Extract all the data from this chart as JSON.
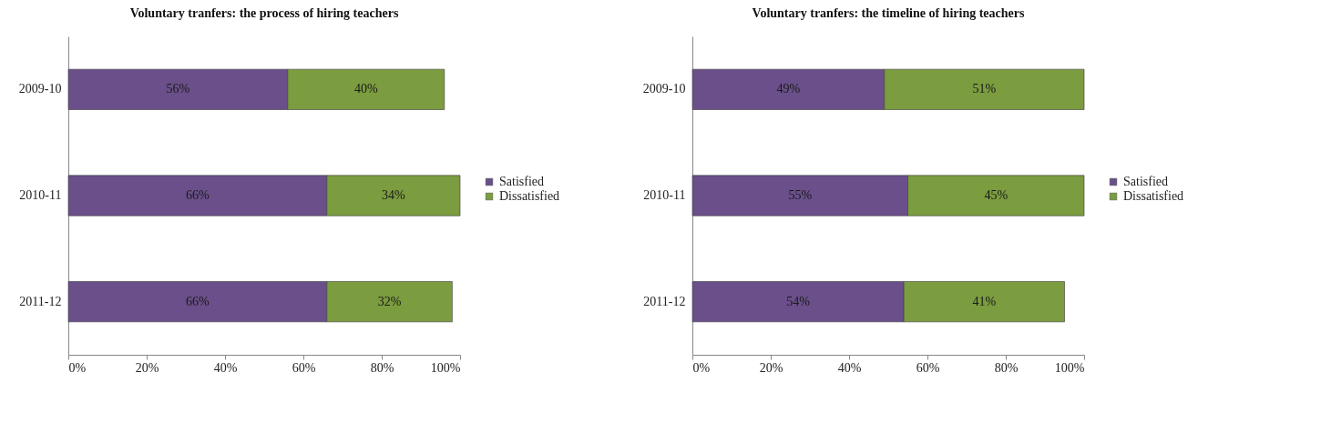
{
  "chart_data": [
    {
      "type": "bar",
      "orientation": "horizontal",
      "stacked": true,
      "title": "Voluntary tranfers: the process of hiring  teachers",
      "categories": [
        "2009-10",
        "2010-11",
        "2011-12"
      ],
      "series": [
        {
          "name": "Satisfied",
          "color": "#6a4f8a",
          "values": [
            56,
            66,
            66
          ],
          "value_labels": [
            "56%",
            "66%",
            "66%"
          ]
        },
        {
          "name": "Dissatisfied",
          "color": "#7b9c3f",
          "values": [
            40,
            34,
            32
          ],
          "value_labels": [
            "40%",
            "34%",
            "32%"
          ]
        }
      ],
      "xlim": [
        0,
        100
      ],
      "xticks": [
        {
          "value": 0,
          "label": "0%"
        },
        {
          "value": 20,
          "label": "20%"
        },
        {
          "value": 40,
          "label": "40%"
        },
        {
          "value": 60,
          "label": "60%"
        },
        {
          "value": 80,
          "label": "80%"
        },
        {
          "value": 100,
          "label": "100%"
        }
      ],
      "legend": "right",
      "grid": false
    },
    {
      "type": "bar",
      "orientation": "horizontal",
      "stacked": true,
      "title": "Voluntary tranfers: the timeline of hiring  teachers",
      "categories": [
        "2009-10",
        "2010-11",
        "2011-12"
      ],
      "series": [
        {
          "name": "Satisfied",
          "color": "#6a4f8a",
          "values": [
            49,
            55,
            54
          ],
          "value_labels": [
            "49%",
            "55%",
            "54%"
          ]
        },
        {
          "name": "Dissatisfied",
          "color": "#7b9c3f",
          "values": [
            51,
            45,
            41
          ],
          "value_labels": [
            "51%",
            "45%",
            "41%"
          ]
        }
      ],
      "xlim": [
        0,
        100
      ],
      "xticks": [
        {
          "value": 0,
          "label": "0%"
        },
        {
          "value": 20,
          "label": "20%"
        },
        {
          "value": 40,
          "label": "40%"
        },
        {
          "value": 60,
          "label": "60%"
        },
        {
          "value": 80,
          "label": "80%"
        },
        {
          "value": 100,
          "label": "100%"
        }
      ],
      "legend": "right",
      "grid": false
    }
  ]
}
